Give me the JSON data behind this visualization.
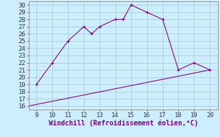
{
  "xlabel": "Windchill (Refroidissement éolien,°C)",
  "line1_x": [
    9,
    10,
    11,
    12,
    12.5,
    13,
    14,
    14.5,
    15,
    16,
    17,
    18,
    19,
    20
  ],
  "line1_y": [
    19,
    22,
    25,
    27,
    26,
    27,
    28,
    28,
    30,
    29,
    28,
    21,
    22,
    21
  ],
  "line2_x": [
    8.5,
    20
  ],
  "line2_y": [
    16,
    21
  ],
  "line_color": "#800080",
  "bg_color": "#cceeff",
  "grid_color": "#aacccc",
  "xlim": [
    8.5,
    20.5
  ],
  "ylim": [
    15.5,
    30.5
  ],
  "xticks": [
    9,
    10,
    11,
    12,
    13,
    14,
    15,
    16,
    17,
    18,
    19,
    20
  ],
  "yticks": [
    16,
    17,
    18,
    19,
    20,
    21,
    22,
    23,
    24,
    25,
    26,
    27,
    28,
    29,
    30
  ],
  "xlabel_fontsize": 7,
  "tick_fontsize": 6.5
}
